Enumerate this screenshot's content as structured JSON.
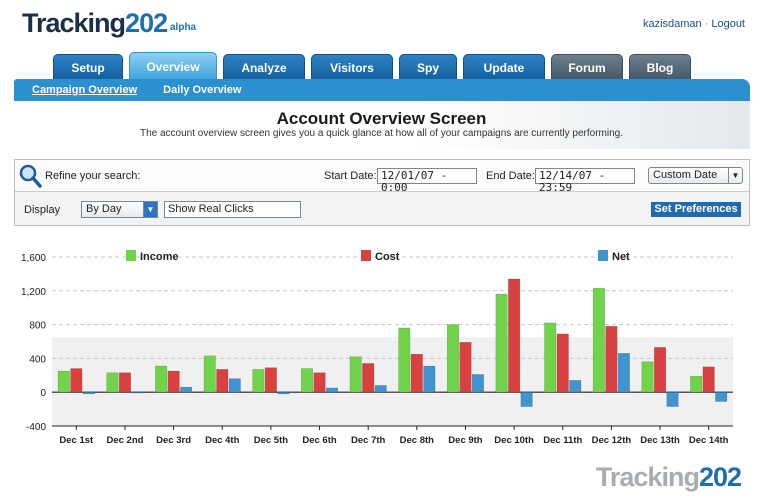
{
  "brand": {
    "name_main": "Tracking",
    "name_num": "202",
    "tag": "alpha"
  },
  "user": {
    "name": "kazisdaman",
    "separator": "·",
    "logout": "Logout"
  },
  "tabs": [
    {
      "label": "Setup",
      "state": "normal"
    },
    {
      "label": "Overview",
      "state": "active"
    },
    {
      "label": "Analyze",
      "state": "normal"
    },
    {
      "label": "Visitors",
      "state": "normal"
    },
    {
      "label": "Spy",
      "state": "normal"
    },
    {
      "label": "Update",
      "state": "normal"
    },
    {
      "label": "Forum",
      "state": "gray"
    },
    {
      "label": "Blog",
      "state": "gray"
    }
  ],
  "subnav": [
    {
      "label": "Campaign Overview",
      "active": true
    },
    {
      "label": "Daily Overview",
      "active": false
    }
  ],
  "page": {
    "title": "Account Overview Screen",
    "subtitle": "The account overview screen gives you a quick glance at how all of your campaigns are currently performing."
  },
  "filter": {
    "refine_label": "Refine your search:",
    "start_label": "Start Date:",
    "start_value": "12/01/07 - 0:00",
    "end_label": "End Date:",
    "end_value": "12/14/07 - 23:59",
    "date_range_select": "Custom Date",
    "display_label": "Display",
    "display_select": "By Day",
    "clicks_select": "Show Real Clicks",
    "set_preferences": "Set Preferences"
  },
  "colors": {
    "income": "#6fd449",
    "cost": "#d94040",
    "net": "#3f95d0",
    "primary": "#1d6fb0"
  },
  "chart_data": {
    "type": "bar",
    "categories": [
      "Dec 1st",
      "Dec 2nd",
      "Dec 3rd",
      "Dec 4th",
      "Dec 5th",
      "Dec 6th",
      "Dec 7th",
      "Dec 8th",
      "Dec 9th",
      "Dec 10th",
      "Dec 11th",
      "Dec 12th",
      "Dec 13th",
      "Dec 14th"
    ],
    "series": [
      {
        "name": "Income",
        "values": [
          250,
          230,
          310,
          430,
          270,
          280,
          420,
          760,
          800,
          1160,
          820,
          1230,
          360,
          190
        ]
      },
      {
        "name": "Cost",
        "values": [
          280,
          230,
          250,
          270,
          290,
          230,
          340,
          450,
          590,
          1340,
          690,
          780,
          530,
          300
        ]
      },
      {
        "name": "Net",
        "values": [
          -20,
          0,
          60,
          160,
          -20,
          50,
          80,
          310,
          210,
          -170,
          140,
          460,
          -170,
          -110
        ]
      }
    ],
    "yticks": [
      "1,600",
      "1,200",
      "800",
      "400",
      "0",
      "-400"
    ],
    "ylim": [
      -400,
      1600
    ],
    "grid": true,
    "legend": "top"
  },
  "footer": {
    "name_main": "Tracking",
    "name_num": "202"
  }
}
